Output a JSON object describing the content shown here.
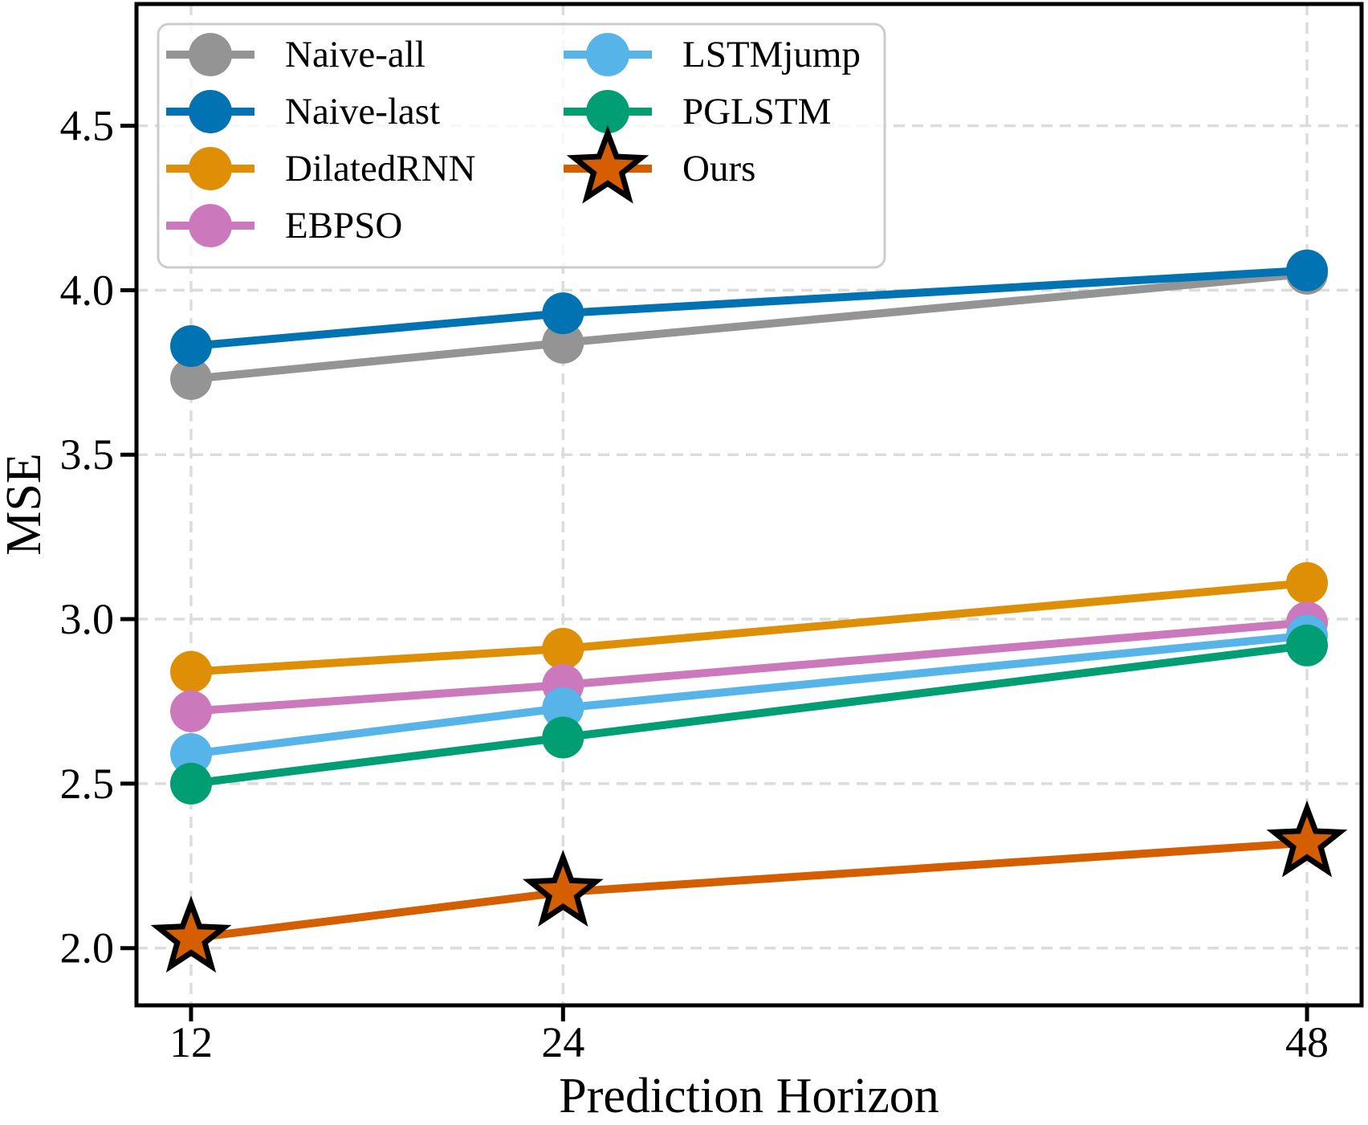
{
  "chart_data": {
    "type": "line",
    "title": "",
    "xlabel": "Prediction Horizon",
    "ylabel": "MSE",
    "x": [
      12,
      24,
      48
    ],
    "xticks": {
      "values": [
        12,
        24,
        48
      ],
      "labels": [
        "12",
        "24",
        "48"
      ]
    },
    "yticks": {
      "values": [
        2.0,
        2.5,
        3.0,
        3.5,
        4.0,
        4.5
      ],
      "labels": [
        "2.0",
        "2.5",
        "3.0",
        "3.5",
        "4.0",
        "4.5"
      ]
    },
    "xlim": [
      10.24,
      49.76
    ],
    "ylim": [
      1.826,
      4.87
    ],
    "grid": true,
    "grid_color": "#dcdcdc",
    "background": "#ffffff",
    "spine_color": "#000000",
    "legend": {
      "position": "upper-left",
      "columns": 2,
      "border_color": "#cccccc",
      "fill_color": "#ffffff",
      "fill_opacity": 0.8,
      "entries": [
        "Naive-all",
        "Naive-last",
        "DilatedRNN",
        "EBPSO",
        "LSTMjump",
        "PGLSTM",
        "Ours"
      ]
    },
    "series": [
      {
        "name": "Naive-all",
        "color": "#949494",
        "marker": "circle",
        "values": [
          3.73,
          3.84,
          4.05
        ]
      },
      {
        "name": "Naive-last",
        "color": "#0173B2",
        "marker": "circle",
        "values": [
          3.83,
          3.93,
          4.06
        ]
      },
      {
        "name": "DilatedRNN",
        "color": "#DE8F05",
        "marker": "circle",
        "values": [
          2.84,
          2.91,
          3.11
        ]
      },
      {
        "name": "EBPSO",
        "color": "#CC78BC",
        "marker": "circle",
        "values": [
          2.72,
          2.8,
          2.99
        ]
      },
      {
        "name": "LSTMjump",
        "color": "#56B4E9",
        "marker": "circle",
        "values": [
          2.59,
          2.73,
          2.95
        ]
      },
      {
        "name": "PGLSTM",
        "color": "#029E73",
        "marker": "circle",
        "values": [
          2.5,
          2.64,
          2.92
        ]
      },
      {
        "name": "Ours",
        "color": "#D55E00",
        "marker": "star",
        "marker_edge_color": "#000000",
        "values": [
          2.03,
          2.17,
          2.32
        ]
      }
    ]
  }
}
